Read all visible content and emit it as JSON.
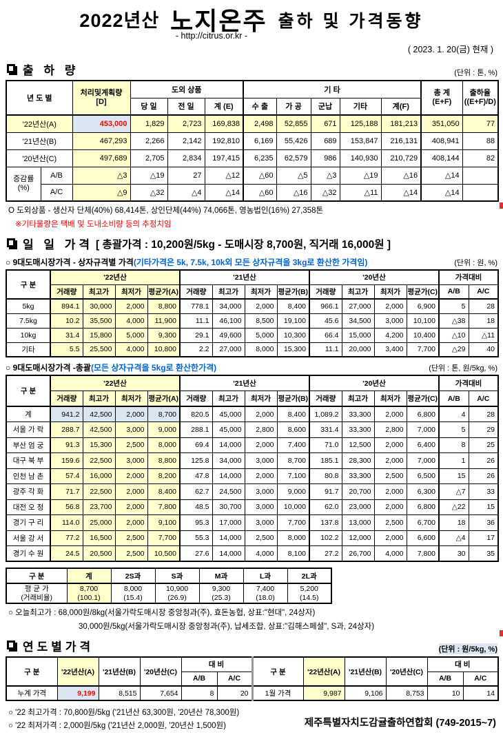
{
  "header": {
    "season": "2022년산",
    "product": "노지온주",
    "title_rest": "출하 및 가격동향",
    "url": "- http://citrus.or.kr -",
    "as_of": "( 2023. 1. 20(금) 현재 )"
  },
  "colors": {
    "highlight_yellow": "#FFFFCC",
    "highlight_blue": "#DCE6F1",
    "alert_red": "#FF0000",
    "note_blue": "#0066CC"
  },
  "shipment": {
    "section_title": "출 하 량",
    "unit": "(단위 : 톤, %)",
    "head": [
      [
        {
          "t": "년 도 별",
          "c": 2,
          "r": 2
        },
        {
          "t": "처리및계획량\n[D]",
          "r": 2,
          "k": "pre y"
        },
        {
          "t": "도외 상품",
          "c": 3
        },
        {
          "t": "기            타",
          "c": 5,
          "k": "gl"
        },
        {
          "t": "총  계\n(E+F)",
          "r": 2,
          "k": "pre gl"
        },
        {
          "t": "출하율\n((E+F)/D)",
          "r": 2,
          "k": "pre"
        }
      ],
      [
        "당 일",
        "전 일",
        "계 (E)",
        {
          "t": "수 출",
          "k": "gl"
        },
        "가 공",
        "군납",
        "기타",
        "계(F)"
      ]
    ],
    "rows": [
      [
        {
          "t": "'22년산(A)",
          "c": 2,
          "k": "c y"
        },
        {
          "t": "453,000",
          "k": "b r"
        },
        {
          "t": "1,829",
          "k": "y"
        },
        {
          "t": "2,723",
          "k": "y"
        },
        {
          "t": "169,838",
          "k": "y"
        },
        {
          "t": "2,498",
          "k": "y gl"
        },
        {
          "t": "52,855",
          "k": "y"
        },
        {
          "t": "671",
          "k": "y"
        },
        {
          "t": "125,188",
          "k": "y"
        },
        {
          "t": "181,213",
          "k": "y"
        },
        {
          "t": "351,050",
          "k": "y gl"
        },
        {
          "t": "77",
          "k": "y"
        }
      ],
      [
        {
          "t": "'21년산(B)",
          "c": 2,
          "k": "c"
        },
        {
          "t": "467,293",
          "k": "y"
        },
        "2,266",
        "2,142",
        "192,810",
        {
          "t": "6,169",
          "k": "gl"
        },
        "55,426",
        "689",
        "153,847",
        "216,131",
        {
          "t": "408,941",
          "k": "gl"
        },
        "88"
      ],
      [
        {
          "t": "'20년산(C)",
          "c": 2,
          "k": "c"
        },
        {
          "t": "497,689",
          "k": "y"
        },
        "2,705",
        "2,834",
        "197,415",
        {
          "t": "6,235",
          "k": "gl"
        },
        "62,579",
        "986",
        "140,930",
        "210,729",
        {
          "t": "408,144",
          "k": "gl"
        },
        "82"
      ],
      [
        {
          "t": "증감률\n(%)",
          "r": 2,
          "k": "c pre"
        },
        {
          "t": "A/B",
          "k": "c"
        },
        {
          "t": "△3",
          "k": "y"
        },
        "△19",
        "27",
        "△12",
        {
          "t": "△60",
          "k": "gl"
        },
        "△5",
        "△3",
        "△19",
        "△16",
        {
          "t": "△14",
          "k": "gl"
        },
        ""
      ],
      [
        {
          "t": "A/C",
          "k": "c"
        },
        {
          "t": "△9",
          "k": "y"
        },
        "△32",
        "△4",
        "△14",
        {
          "t": "△60",
          "k": "gl"
        },
        "△16",
        "△32",
        "△11",
        "△14",
        {
          "t": "△14",
          "k": "gl"
        },
        ""
      ]
    ],
    "note1": "O 도외상품 - 생산자 단체(40%)  68,414톤,   상인단체(44%)  74,066톤,   영농법인(16%)  27,358톤",
    "note2": "※기타물량은 택배 및 도내소비량 등의 추정치임"
  },
  "daily_price": {
    "section_title": "일 일 가격",
    "summary": "[ 총괄가격 : 10,200원/5kg - 도매시장  8,700원,  직거래  16,000원 ]",
    "by_box": {
      "label": "○ 9대도매시장가격 - 상자규격별 가격",
      "label_note": "(기타가격은 5k, 7.5k, 10k외 모든 상자규격을 3kg로 환산한 가격임)",
      "unit": "(단위 : 원, %)",
      "head": [
        [
          {
            "t": "구  분",
            "r": 2
          },
          {
            "t": "'22년산",
            "c": 4,
            "k": "y gl"
          },
          {
            "t": "'21년산",
            "c": 4,
            "k": "gl"
          },
          {
            "t": "'20년산",
            "c": 4,
            "k": "gl"
          },
          {
            "t": "가격대비",
            "c": 2,
            "k": "gl"
          }
        ],
        [
          {
            "t": "거래량",
            "k": "y gl"
          },
          {
            "t": "최고가",
            "k": "y"
          },
          {
            "t": "최저가",
            "k": "y"
          },
          {
            "t": "평균가(A)",
            "k": "y"
          },
          {
            "t": "거래량",
            "k": "gl"
          },
          "최고가",
          "최저가",
          "평균가(B)",
          {
            "t": "거래량",
            "k": "gl"
          },
          "최고가",
          "최저가",
          "평균가(C)",
          {
            "t": "A/B",
            "k": "gl"
          },
          "A/C"
        ]
      ],
      "rows": [
        [
          {
            "t": "5kg",
            "k": "c"
          },
          {
            "t": "894.1",
            "k": "y gl"
          },
          {
            "t": "30,000",
            "k": "y"
          },
          {
            "t": "2,000",
            "k": "y"
          },
          {
            "t": "8,800",
            "k": "y"
          },
          {
            "t": "778.1",
            "k": "gl"
          },
          "34,000",
          "2,000",
          "8,400",
          {
            "t": "966.1",
            "k": "gl"
          },
          "27,000",
          "2,000",
          "6,900",
          {
            "t": "5",
            "k": "gl"
          },
          "28"
        ],
        [
          {
            "t": "7.5kg",
            "k": "c"
          },
          {
            "t": "10.2",
            "k": "y gl"
          },
          {
            "t": "35,500",
            "k": "y"
          },
          {
            "t": "4,000",
            "k": "y"
          },
          {
            "t": "11,900",
            "k": "y"
          },
          {
            "t": "11.1",
            "k": "gl"
          },
          "46,100",
          "8,500",
          "19,100",
          {
            "t": "45.6",
            "k": "gl"
          },
          "34,500",
          "3,000",
          "10,100",
          {
            "t": "△38",
            "k": "gl"
          },
          "18"
        ],
        [
          {
            "t": "10kg",
            "k": "c"
          },
          {
            "t": "31.4",
            "k": "y gl"
          },
          {
            "t": "15,800",
            "k": "y"
          },
          {
            "t": "5,000",
            "k": "y"
          },
          {
            "t": "9,300",
            "k": "y"
          },
          {
            "t": "29.1",
            "k": "gl"
          },
          "49,600",
          "5,000",
          "10,300",
          {
            "t": "66.4",
            "k": "gl"
          },
          "15,000",
          "4,200",
          "10,400",
          {
            "t": "△10",
            "k": "gl"
          },
          "△11"
        ],
        [
          {
            "t": "기타",
            "k": "c"
          },
          {
            "t": "5.5",
            "k": "y gl"
          },
          {
            "t": "25,500",
            "k": "y"
          },
          {
            "t": "4,000",
            "k": "y"
          },
          {
            "t": "10,800",
            "k": "y"
          },
          {
            "t": "2.2",
            "k": "gl"
          },
          "27,000",
          "8,000",
          "15,300",
          {
            "t": "11.1",
            "k": "gl"
          },
          "20,000",
          "3,400",
          "7,700",
          {
            "t": "△29",
            "k": "gl"
          },
          "40"
        ]
      ]
    },
    "overall": {
      "label": "○ 9대도매시장가격 -총괄",
      "label_note": "(모든 상자규격을 5kg로 환산한가격)",
      "unit": "(단위 : 톤, 원/5kg, %)",
      "head": [
        [
          {
            "t": "구  분",
            "r": 2
          },
          {
            "t": "'22년산",
            "c": 4,
            "k": "y gl"
          },
          {
            "t": "'21년산",
            "c": 4,
            "k": "gl"
          },
          {
            "t": "'20년산",
            "c": 4,
            "k": "gl"
          },
          {
            "t": "가격대비",
            "c": 2,
            "k": "gl"
          }
        ],
        [
          {
            "t": "거래량",
            "k": "y gl"
          },
          {
            "t": "최고가",
            "k": "y"
          },
          {
            "t": "최저가",
            "k": "y"
          },
          {
            "t": "평균가(A)",
            "k": "y"
          },
          {
            "t": "거래량",
            "k": "gl"
          },
          "최고가",
          "최저가",
          "평균가(B)",
          {
            "t": "거래량",
            "k": "gl"
          },
          "최고가",
          "최저가",
          "평균가(C)",
          {
            "t": "A/B",
            "k": "gl"
          },
          "A/C"
        ]
      ],
      "rows": [
        [
          {
            "t": "계",
            "k": "c"
          },
          {
            "t": "941.2",
            "k": "b gl"
          },
          {
            "t": "42,500",
            "k": "b"
          },
          {
            "t": "2,000",
            "k": "b"
          },
          {
            "t": "8,700",
            "k": "b"
          },
          {
            "t": "820.5",
            "k": "gl"
          },
          "45,000",
          "2,000",
          "8,400",
          {
            "t": "1,089.2",
            "k": "gl"
          },
          "33,300",
          "2,000",
          "6,800",
          {
            "t": "4",
            "k": "gl"
          },
          "28"
        ],
        [
          {
            "t": "서울 가 락",
            "k": "c"
          },
          {
            "t": "288.7",
            "k": "y gl"
          },
          {
            "t": "42,500",
            "k": "y"
          },
          {
            "t": "3,000",
            "k": "y"
          },
          {
            "t": "9,000",
            "k": "y"
          },
          {
            "t": "288.1",
            "k": "gl"
          },
          "45,000",
          "2,800",
          "8,600",
          {
            "t": "331.4",
            "k": "gl"
          },
          "33,300",
          "2,800",
          "7,000",
          {
            "t": "5",
            "k": "gl"
          },
          "29"
        ],
        [
          {
            "t": "부산 엄 궁",
            "k": "c"
          },
          {
            "t": "91.3",
            "k": "y gl"
          },
          {
            "t": "15,300",
            "k": "y"
          },
          {
            "t": "2,500",
            "k": "y"
          },
          {
            "t": "8,000",
            "k": "y"
          },
          {
            "t": "69.4",
            "k": "gl"
          },
          "14,000",
          "2,000",
          "7,400",
          {
            "t": "71.0",
            "k": "gl"
          },
          "12,500",
          "2,000",
          "6,400",
          {
            "t": "8",
            "k": "gl"
          },
          "25"
        ],
        [
          {
            "t": "대구 북 부",
            "k": "c"
          },
          {
            "t": "159.6",
            "k": "y gl"
          },
          {
            "t": "22,500",
            "k": "y"
          },
          {
            "t": "3,000",
            "k": "y"
          },
          {
            "t": "8,800",
            "k": "y"
          },
          {
            "t": "125.8",
            "k": "gl"
          },
          "34,000",
          "3,000",
          "8,700",
          {
            "t": "185.1",
            "k": "gl"
          },
          "28,300",
          "2,000",
          "7,000",
          {
            "t": "1",
            "k": "gl"
          },
          "26"
        ],
        [
          {
            "t": "인천 남 촌",
            "k": "c"
          },
          {
            "t": "57.4",
            "k": "y gl"
          },
          {
            "t": "16,000",
            "k": "y"
          },
          {
            "t": "2,000",
            "k": "y"
          },
          {
            "t": "8,200",
            "k": "y"
          },
          {
            "t": "47.8",
            "k": "gl"
          },
          "14,000",
          "2,000",
          "7,100",
          {
            "t": "80.8",
            "k": "gl"
          },
          "33,300",
          "2,500",
          "6,500",
          {
            "t": "15",
            "k": "gl"
          },
          "26"
        ],
        [
          {
            "t": "광주 각 화",
            "k": "c"
          },
          {
            "t": "71.7",
            "k": "y gl"
          },
          {
            "t": "22,500",
            "k": "y"
          },
          {
            "t": "2,000",
            "k": "y"
          },
          {
            "t": "8,400",
            "k": "y"
          },
          {
            "t": "62.7",
            "k": "gl"
          },
          "24,500",
          "3,000",
          "9,000",
          {
            "t": "91.7",
            "k": "gl"
          },
          "20,700",
          "2,000",
          "6,300",
          {
            "t": "△7",
            "k": "gl"
          },
          "33"
        ],
        [
          {
            "t": "대전 오 정",
            "k": "c"
          },
          {
            "t": "56.8",
            "k": "y gl"
          },
          {
            "t": "23,700",
            "k": "y"
          },
          {
            "t": "2,000",
            "k": "y"
          },
          {
            "t": "7,800",
            "k": "y"
          },
          {
            "t": "48.5",
            "k": "gl"
          },
          "30,700",
          "3,000",
          "10,000",
          {
            "t": "62.0",
            "k": "gl"
          },
          "23,000",
          "2,000",
          "6,800",
          {
            "t": "△22",
            "k": "gl"
          },
          "15"
        ],
        [
          {
            "t": "경기 구 리",
            "k": "c"
          },
          {
            "t": "114.0",
            "k": "y gl"
          },
          {
            "t": "25,000",
            "k": "y"
          },
          {
            "t": "2,000",
            "k": "y"
          },
          {
            "t": "9,100",
            "k": "y"
          },
          {
            "t": "95.3",
            "k": "gl"
          },
          "17,000",
          "3,000",
          "7,700",
          {
            "t": "137.8",
            "k": "gl"
          },
          "13,000",
          "2,500",
          "6,700",
          {
            "t": "18",
            "k": "gl"
          },
          "36"
        ],
        [
          {
            "t": "서울 강 서",
            "k": "c"
          },
          {
            "t": "77.2",
            "k": "y gl"
          },
          {
            "t": "16,500",
            "k": "y"
          },
          {
            "t": "2,500",
            "k": "y"
          },
          {
            "t": "7,700",
            "k": "y"
          },
          {
            "t": "55.3",
            "k": "gl"
          },
          "14,000",
          "2,500",
          "8,000",
          {
            "t": "102.2",
            "k": "gl"
          },
          "12,000",
          "2,000",
          "6,600",
          {
            "t": "△4",
            "k": "gl"
          },
          "17"
        ],
        [
          {
            "t": "경기 수 원",
            "k": "c"
          },
          {
            "t": "24.5",
            "k": "y gl"
          },
          {
            "t": "20,500",
            "k": "y"
          },
          {
            "t": "2,500",
            "k": "y"
          },
          {
            "t": "10,500",
            "k": "y"
          },
          {
            "t": "27.6",
            "k": "gl"
          },
          "14,000",
          "4,000",
          "8,100",
          {
            "t": "27.2",
            "k": "gl"
          },
          "26,700",
          "4,000",
          "7,800",
          {
            "t": "30",
            "k": "gl"
          },
          "35"
        ]
      ]
    },
    "by_grade": {
      "head": [
        [
          "구     분",
          {
            "t": "계",
            "k": "y"
          },
          "2S과",
          "S과",
          "M과",
          "L과",
          "2L과"
        ]
      ],
      "rows": [
        [
          {
            "t": "평 균 가\n(거래비율)",
            "k": "c pre"
          },
          {
            "t": "8,700\n(100.1)",
            "k": "c pre y"
          },
          {
            "t": "8,000\n(15.4)",
            "k": "c pre"
          },
          {
            "t": "10,900\n(26.9)",
            "k": "c pre"
          },
          {
            "t": "9,300\n(25.3)",
            "k": "c pre"
          },
          {
            "t": "7,400\n(18.0)",
            "k": "c pre"
          },
          {
            "t": "5,200\n(14.5)",
            "k": "c pre"
          }
        ]
      ]
    },
    "today_high_1": "○ 오늘최고가 : 68,000원/8kg(서울가락도매시장  중앙청과(주),   효돈농협,   상표:\"현대\",  24상자)",
    "today_high_2": "30,000원/5kg(서울가락도매시장  중앙청과(주),   납세조합,   상표:\"김해스페셜\",   S과,   24상자)"
  },
  "yearly_price": {
    "section_title": "연도별가격",
    "unit": "(단위 : 원/5kg, %)",
    "head": [
      [
        {
          "t": "구      분",
          "r": 2
        },
        {
          "t": "'22년산(A)",
          "r": 2,
          "k": "y"
        },
        {
          "t": "'21년산(B)",
          "r": 2
        },
        {
          "t": "'20년산(C)",
          "r": 2
        },
        {
          "t": "대      비",
          "c": 2
        },
        {
          "t": "구      분",
          "r": 2,
          "k": "mid"
        },
        {
          "t": "'22년산(A)",
          "r": 2,
          "k": "y"
        },
        {
          "t": "'21년산(B)",
          "r": 2
        },
        {
          "t": "'20년산(C)",
          "r": 2
        },
        {
          "t": "대      비",
          "c": 2
        }
      ],
      [
        "A/B",
        "A/C",
        {
          "t": "A/B",
          "k": ""
        },
        "A/C"
      ]
    ],
    "rows": [
      [
        {
          "t": "누계 가격",
          "k": "c"
        },
        {
          "t": "9,199",
          "k": "b r"
        },
        "8,515",
        "7,654",
        "8",
        "20",
        {
          "t": "1월 가격",
          "k": "c mid"
        },
        {
          "t": "9,987",
          "k": "y"
        },
        "9,106",
        "8,753",
        "10",
        "14"
      ]
    ],
    "note_high": "○ '22 최고가격 : 70,800원/5kg ('21년산 63,300원, '20년산 78,300원)",
    "note_low": "○ '22 최저가격 :   2,000원/5kg ('21년산  2,000원, '20년산  1,500원)",
    "org": "제주특별자치도감귤출하연합회 (749-2015~7)"
  }
}
